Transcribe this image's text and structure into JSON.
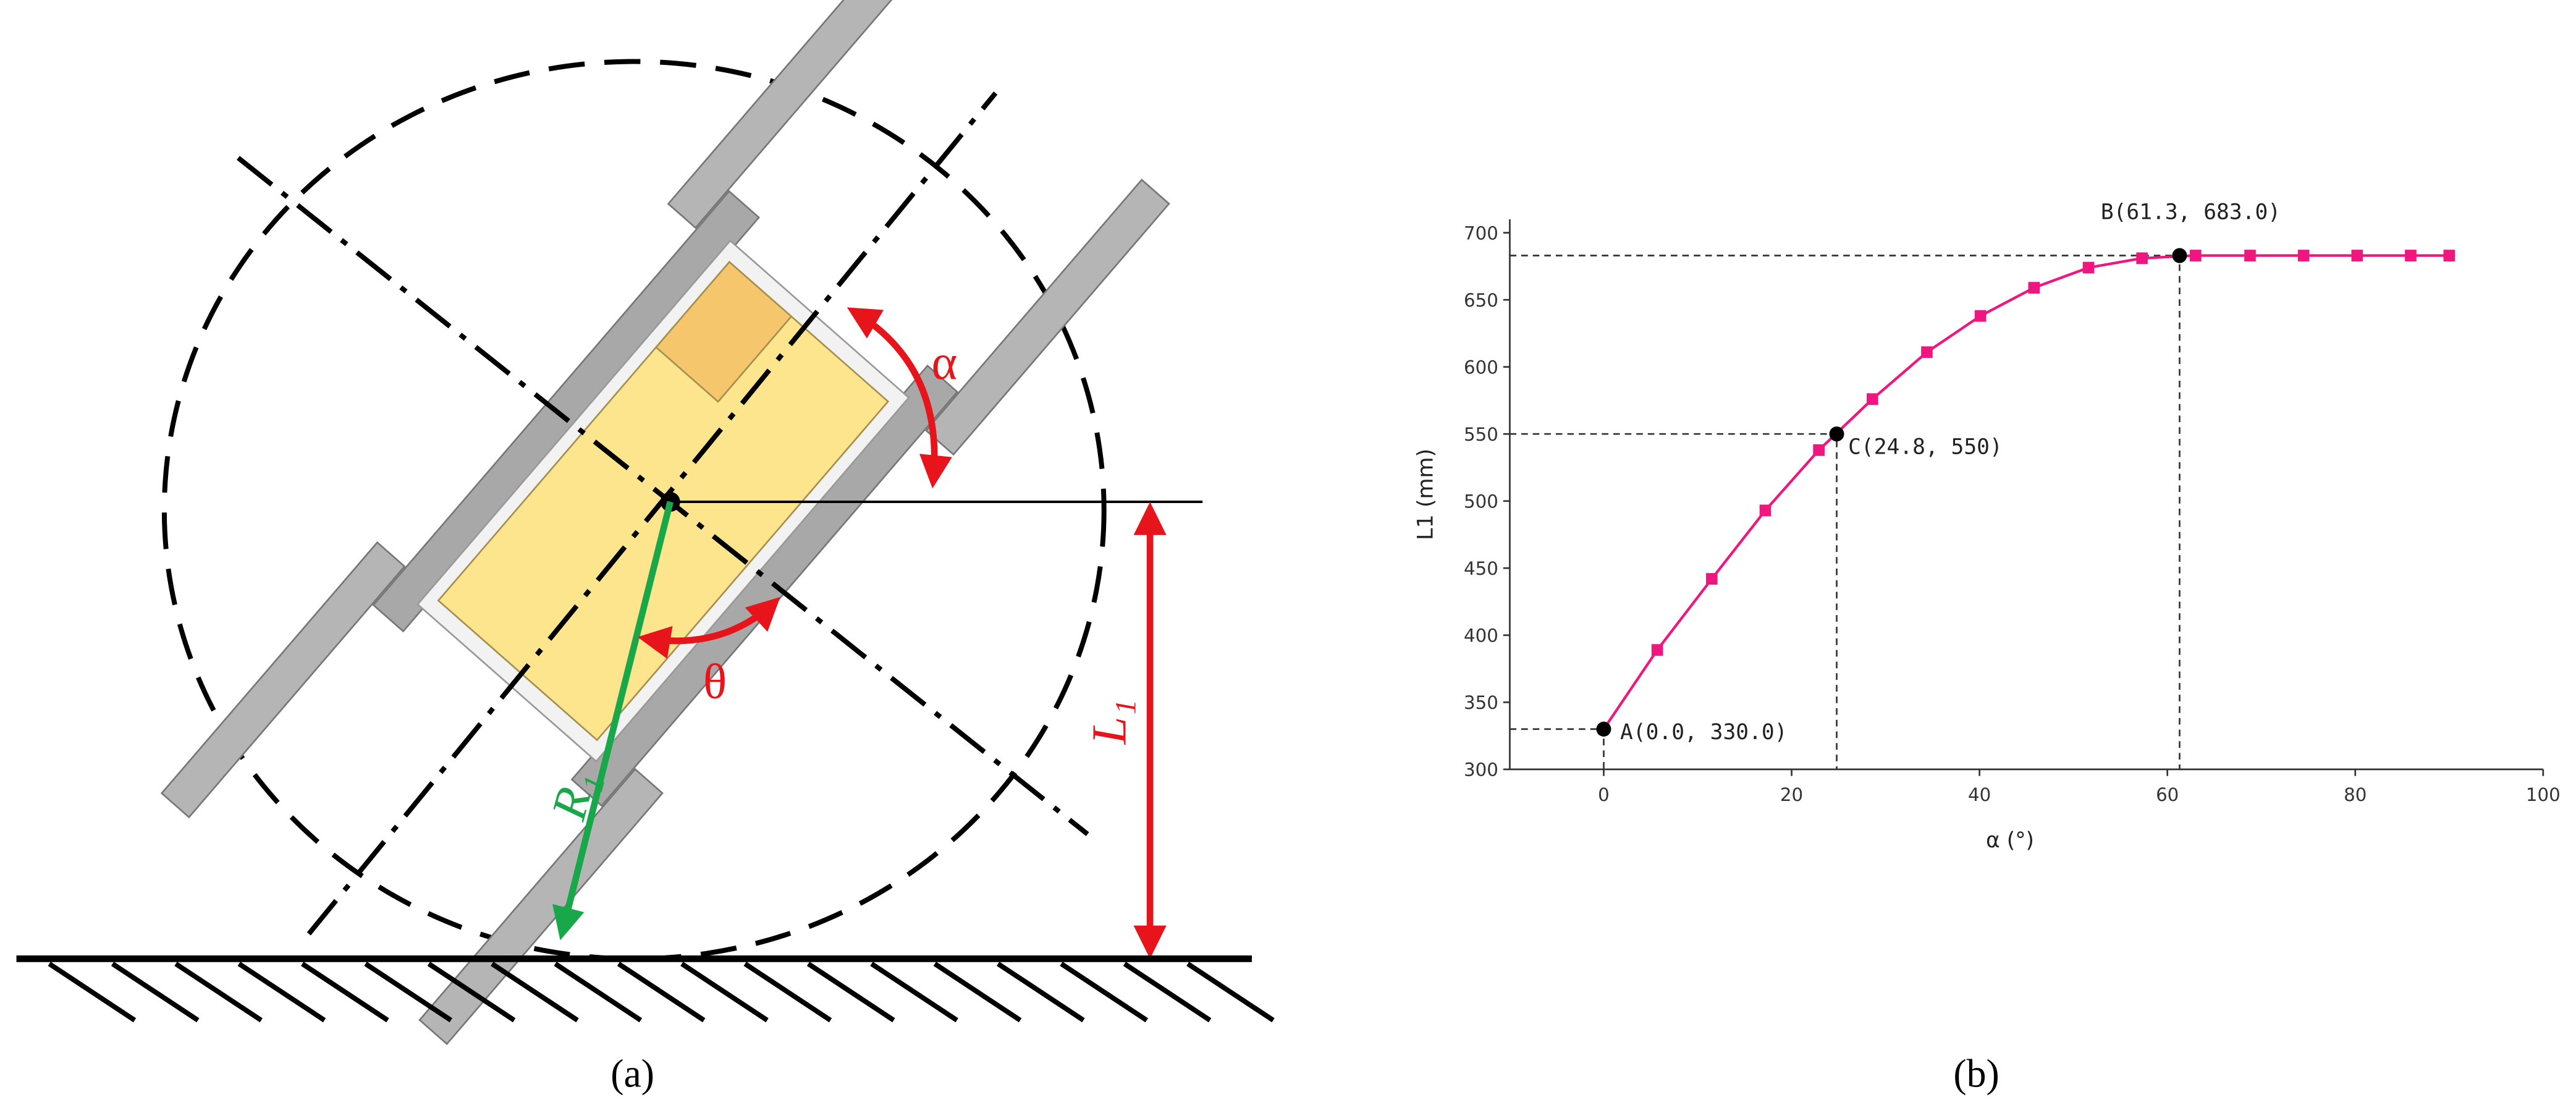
{
  "diagram": {
    "alpha_label": "α",
    "theta_label": "θ",
    "radius_label": "R₁",
    "height_label": "L₁",
    "caption": "(a)"
  },
  "chart_caption": "(b)",
  "chart_data": {
    "type": "line",
    "x_label": "α (°)",
    "y_label": "L1 (mm)",
    "x": [
      0,
      5.7,
      11.5,
      17.2,
      22.9,
      28.6,
      34.4,
      40.1,
      45.8,
      51.6,
      57.3,
      63.0,
      68.8,
      74.5,
      80.2,
      85.9,
      90
    ],
    "series": [
      {
        "name": "L1",
        "color": "#f0167f",
        "values": [
          330,
          389,
          442,
          493,
          538,
          576,
          611,
          638,
          659,
          674,
          681,
          683,
          683,
          683,
          683,
          683,
          683
        ]
      }
    ],
    "annotations": [
      {
        "label": "A(0.0, 330.0)",
        "x": 0,
        "y": 330
      },
      {
        "label": "B(61.3, 683.0)",
        "x": 61.3,
        "y": 683
      },
      {
        "label": "C(24.8, 550)",
        "x": 24.8,
        "y": 550
      }
    ],
    "xlim": [
      -10,
      100
    ],
    "ylim": [
      300,
      710
    ],
    "xticks": [
      0,
      20,
      40,
      60,
      80,
      100
    ],
    "yticks": [
      300,
      350,
      400,
      450,
      500,
      550,
      600,
      650,
      700
    ]
  }
}
